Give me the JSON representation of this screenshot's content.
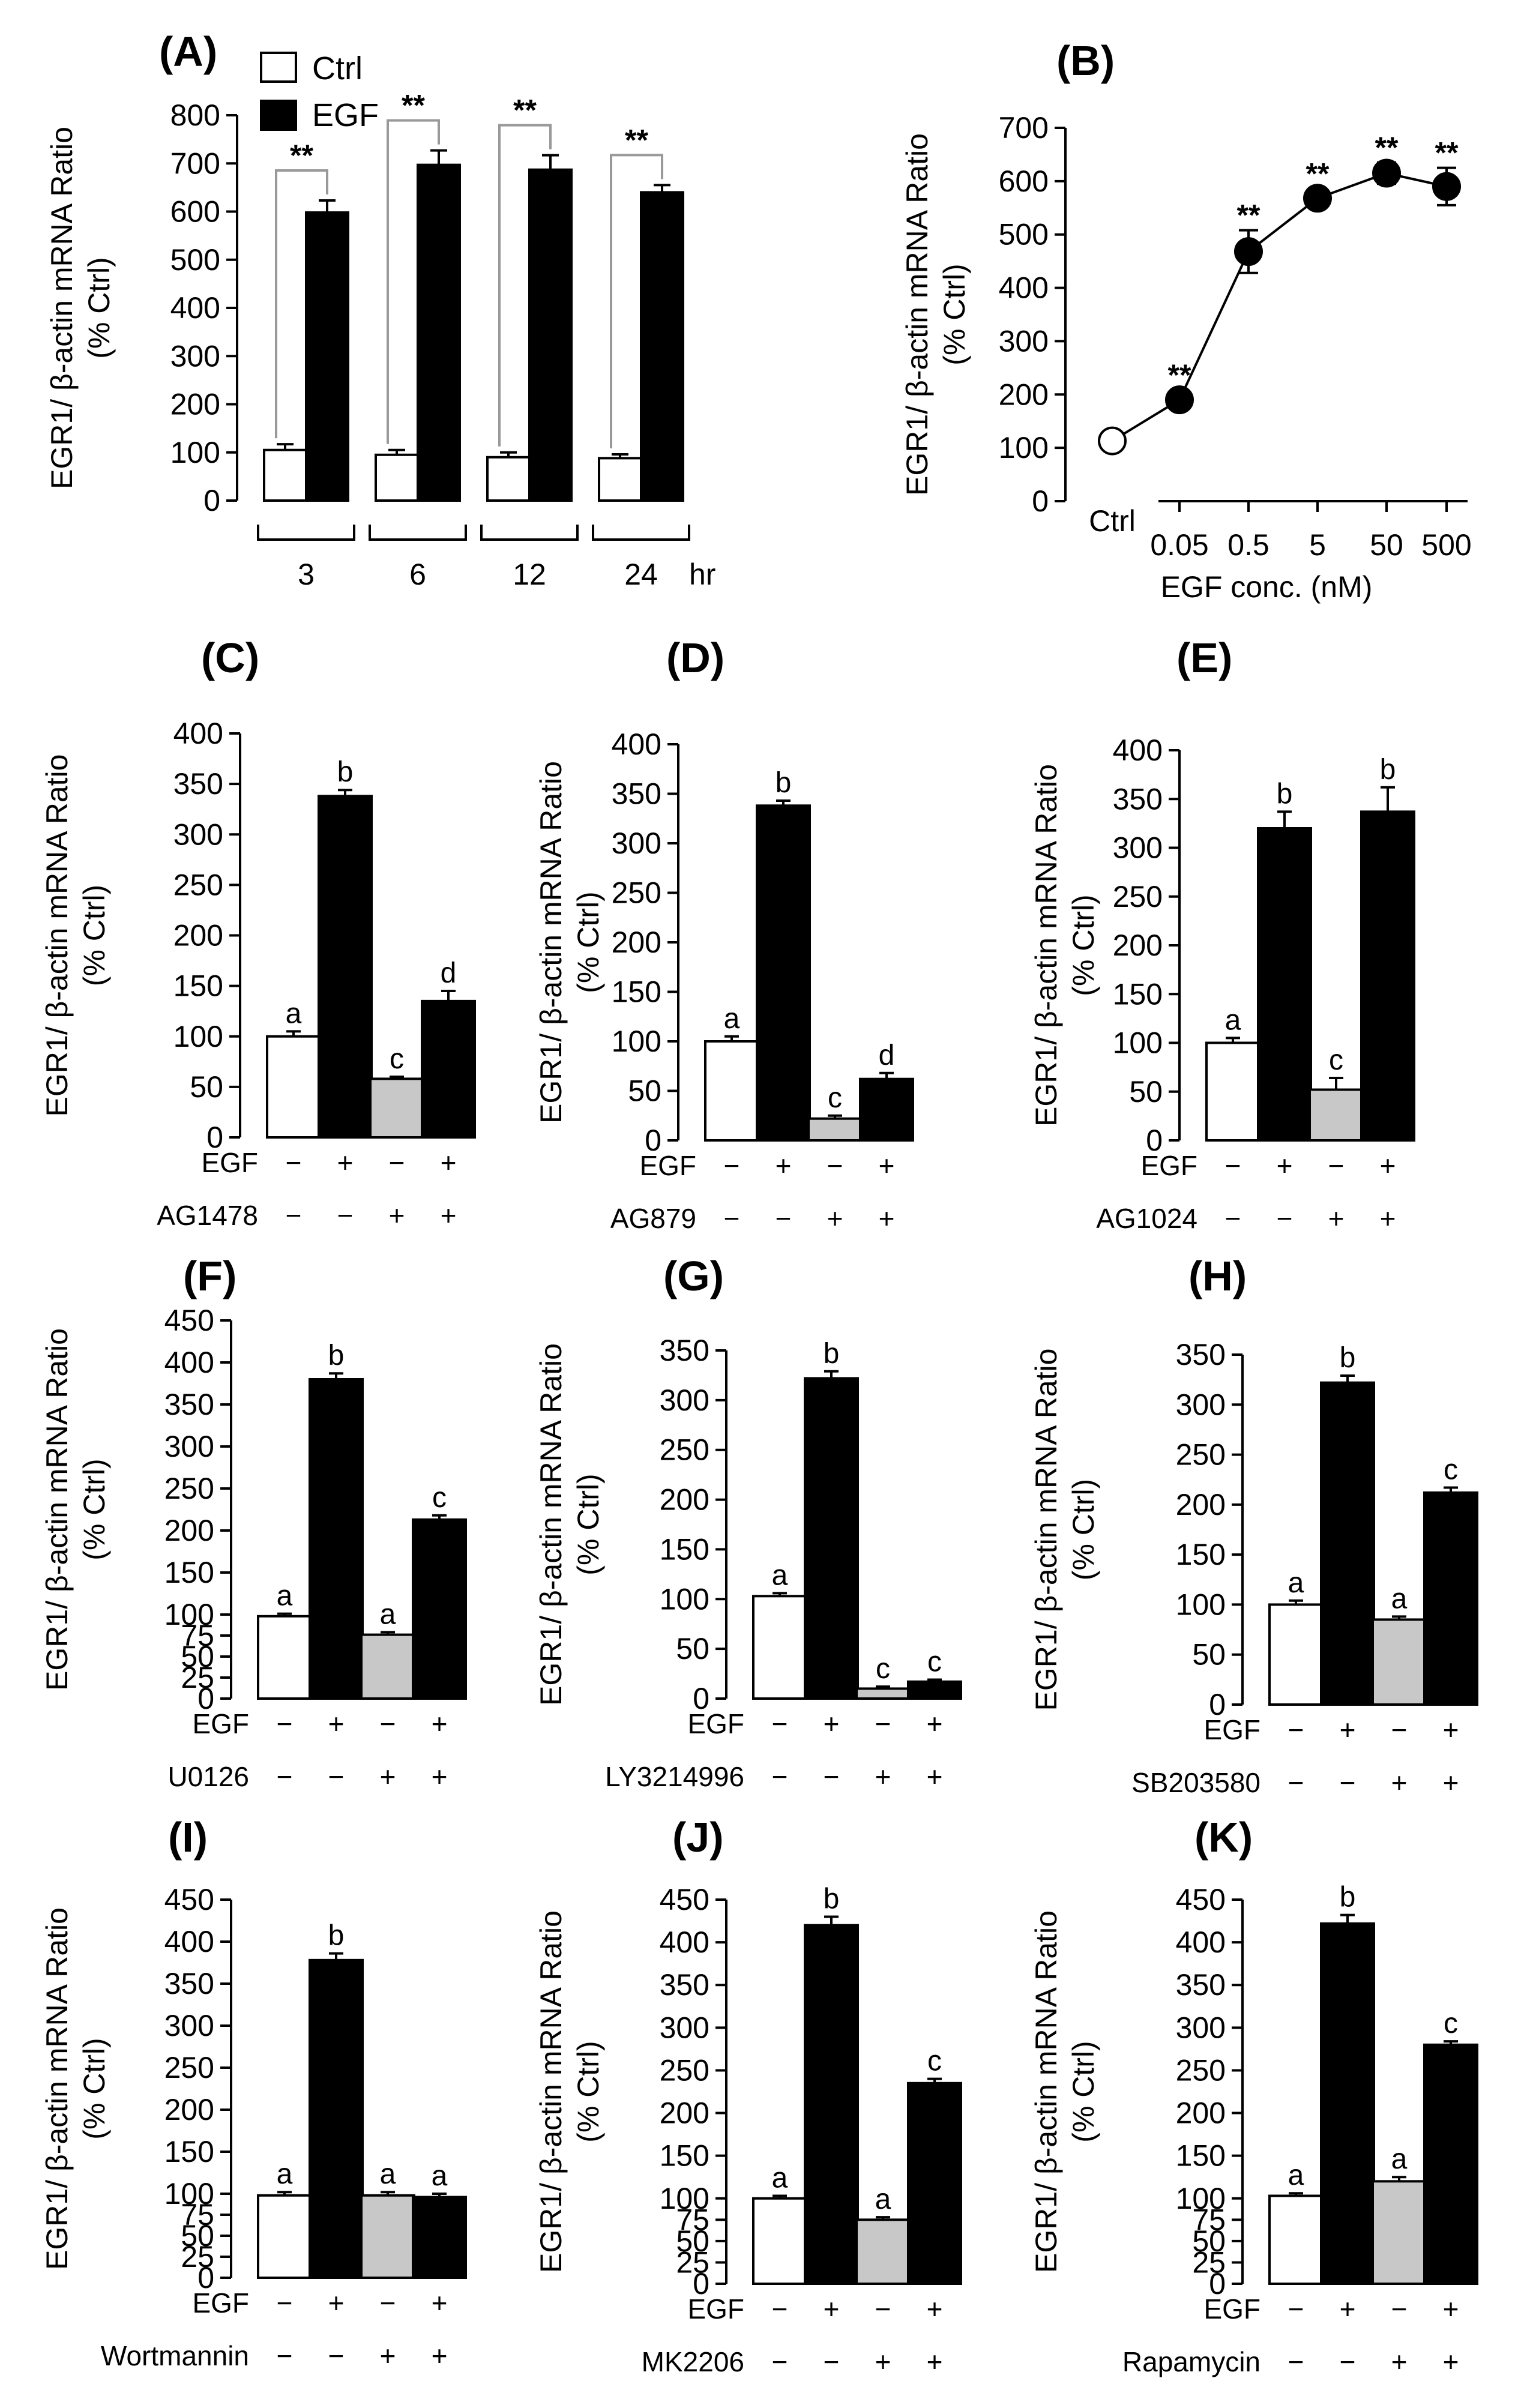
{
  "chart_data": [
    {
      "panel": "(A)",
      "type": "bar",
      "title": "(A)",
      "ylabel": "EGR1/ β-actin mRNA Ratio\n(% Ctrl)",
      "ylim": [
        0,
        800
      ],
      "yticks": [
        0,
        100,
        200,
        300,
        400,
        500,
        600,
        700,
        800
      ],
      "categories": [
        "3",
        "6",
        "12",
        "24"
      ],
      "xunit": "hr",
      "legend": [
        "Ctrl",
        "EGF"
      ],
      "series": [
        {
          "name": "Ctrl",
          "values": [
            105,
            95,
            90,
            88
          ],
          "errors": [
            12,
            10,
            10,
            8
          ],
          "color": "#ffffff"
        },
        {
          "name": "EGF",
          "values": [
            598,
            697,
            687,
            640
          ],
          "errors": [
            25,
            30,
            30,
            15
          ],
          "color": "#000000"
        }
      ],
      "significance": [
        "**",
        "**",
        "**",
        "**"
      ]
    },
    {
      "panel": "(B)",
      "type": "line",
      "title": "(B)",
      "ylabel": "EGR1/ β-actin mRNA Ratio\n(% Ctrl)",
      "xlabel": "EGF conc. (nM)",
      "ylim": [
        0,
        700
      ],
      "yticks": [
        0,
        100,
        200,
        300,
        400,
        500,
        600,
        700
      ],
      "x": [
        "Ctrl",
        "0.05",
        "0.5",
        "5",
        "50",
        "500"
      ],
      "values": [
        113,
        190,
        468,
        568,
        615,
        590
      ],
      "errors": [
        18,
        18,
        40,
        18,
        20,
        35
      ],
      "labels": [
        "",
        "**",
        "**",
        "**",
        "**",
        "**"
      ]
    },
    {
      "panel": "(C)",
      "type": "bar",
      "title": "(C)",
      "ylabel": "EGR1/ β-actin mRNA Ratio\n(% Ctrl)",
      "ylim": [
        0,
        400
      ],
      "yticks": [
        0,
        50,
        100,
        150,
        200,
        250,
        300,
        350,
        400
      ],
      "values": [
        100,
        338,
        58,
        135
      ],
      "errors": [
        5,
        6,
        2,
        10
      ],
      "colors": [
        "#ffffff",
        "#000000",
        "#c8c8c8",
        "#000000"
      ],
      "letters": [
        "a",
        "b",
        "c",
        "d"
      ],
      "treatments": [
        {
          "name": "EGF",
          "signs": [
            "−",
            "+",
            "−",
            "+"
          ]
        },
        {
          "name": "AG1478",
          "signs": [
            "−",
            "−",
            "+",
            "+"
          ]
        }
      ]
    },
    {
      "panel": "(D)",
      "type": "bar",
      "title": "(D)",
      "ylabel": "EGR1/ β-actin mRNA Ratio\n(% Ctrl)",
      "ylim": [
        0,
        400
      ],
      "yticks": [
        0,
        50,
        100,
        150,
        200,
        250,
        300,
        350,
        400
      ],
      "values": [
        100,
        338,
        22,
        62
      ],
      "errors": [
        5,
        5,
        3,
        6
      ],
      "colors": [
        "#ffffff",
        "#000000",
        "#c8c8c8",
        "#000000"
      ],
      "letters": [
        "a",
        "b",
        "c",
        "d"
      ],
      "treatments": [
        {
          "name": "EGF",
          "signs": [
            "−",
            "+",
            "−",
            "+"
          ]
        },
        {
          "name": "AG879",
          "signs": [
            "−",
            "−",
            "+",
            "+"
          ]
        }
      ]
    },
    {
      "panel": "(E)",
      "type": "bar",
      "title": "(E)",
      "ylabel": "EGR1/ β-actin mRNA Ratio\n(% Ctrl)",
      "ylim": [
        0,
        400
      ],
      "yticks": [
        0,
        50,
        100,
        150,
        200,
        250,
        300,
        350,
        400
      ],
      "values": [
        100,
        320,
        52,
        337
      ],
      "errors": [
        5,
        17,
        12,
        25
      ],
      "colors": [
        "#ffffff",
        "#000000",
        "#c8c8c8",
        "#000000"
      ],
      "letters": [
        "a",
        "b",
        "c",
        "b"
      ],
      "treatments": [
        {
          "name": "EGF",
          "signs": [
            "−",
            "+",
            "−",
            "+"
          ]
        },
        {
          "name": "AG1024",
          "signs": [
            "−",
            "−",
            "+",
            "+"
          ]
        }
      ]
    },
    {
      "panel": "(F)",
      "type": "bar",
      "title": "(F)",
      "ylabel": "EGR1/ β-actin mRNA Ratio\n(% Ctrl)",
      "ylim": [
        0,
        450
      ],
      "yticks": [
        0,
        25,
        50,
        75,
        100,
        150,
        200,
        250,
        300,
        350,
        400,
        450
      ],
      "values": [
        98,
        380,
        76,
        213
      ],
      "errors": [
        3,
        7,
        3,
        5
      ],
      "colors": [
        "#ffffff",
        "#000000",
        "#c8c8c8",
        "#000000"
      ],
      "letters": [
        "a",
        "b",
        "a",
        "c"
      ],
      "treatments": [
        {
          "name": "EGF",
          "signs": [
            "−",
            "+",
            "−",
            "+"
          ]
        },
        {
          "name": "U0126",
          "signs": [
            "−",
            "−",
            "+",
            "+"
          ]
        }
      ]
    },
    {
      "panel": "(G)",
      "type": "bar",
      "title": "(G)",
      "ylabel": "EGR1/ β-actin mRNA Ratio\n(% Ctrl)",
      "ylim": [
        0,
        350
      ],
      "yticks": [
        0,
        50,
        100,
        150,
        200,
        250,
        300,
        350
      ],
      "values": [
        103,
        322,
        10,
        17
      ],
      "errors": [
        3,
        7,
        2,
        2
      ],
      "colors": [
        "#ffffff",
        "#000000",
        "#c8c8c8",
        "#000000"
      ],
      "letters": [
        "a",
        "b",
        "c",
        "c"
      ],
      "treatments": [
        {
          "name": "EGF",
          "signs": [
            "−",
            "+",
            "−",
            "+"
          ]
        },
        {
          "name": "LY3214996",
          "signs": [
            "−",
            "−",
            "+",
            "+"
          ]
        }
      ]
    },
    {
      "panel": "(H)",
      "type": "bar",
      "title": "(H)",
      "ylabel": "EGR1/ β-actin mRNA Ratio\n(% Ctrl)",
      "ylim": [
        0,
        350
      ],
      "yticks": [
        0,
        50,
        100,
        150,
        200,
        250,
        300,
        350
      ],
      "values": [
        100,
        322,
        85,
        212
      ],
      "errors": [
        4,
        7,
        3,
        5
      ],
      "colors": [
        "#ffffff",
        "#000000",
        "#c8c8c8",
        "#000000"
      ],
      "letters": [
        "a",
        "b",
        "a",
        "c"
      ],
      "treatments": [
        {
          "name": "EGF",
          "signs": [
            "−",
            "+",
            "−",
            "+"
          ]
        },
        {
          "name": "SB203580",
          "signs": [
            "−",
            "−",
            "+",
            "+"
          ]
        }
      ]
    },
    {
      "panel": "(I)",
      "type": "bar",
      "title": "(I)",
      "ylabel": "EGR1/ β-actin mRNA Ratio\n(% Ctrl)",
      "ylim": [
        0,
        450
      ],
      "yticks": [
        0,
        25,
        50,
        75,
        100,
        150,
        200,
        250,
        300,
        350,
        400,
        450
      ],
      "values": [
        98,
        378,
        98,
        96
      ],
      "errors": [
        4,
        8,
        4,
        4
      ],
      "colors": [
        "#ffffff",
        "#000000",
        "#c8c8c8",
        "#000000"
      ],
      "letters": [
        "a",
        "b",
        "a",
        "a"
      ],
      "treatments": [
        {
          "name": "EGF",
          "signs": [
            "−",
            "+",
            "−",
            "+"
          ]
        },
        {
          "name": "Wortmannin",
          "signs": [
            "−",
            "−",
            "+",
            "+"
          ]
        }
      ]
    },
    {
      "panel": "(J)",
      "type": "bar",
      "title": "(J)",
      "ylabel": "EGR1/ β-actin mRNA Ratio\n(% Ctrl)",
      "ylim": [
        0,
        450
      ],
      "yticks": [
        0,
        25,
        50,
        75,
        100,
        150,
        200,
        250,
        300,
        350,
        400,
        450
      ],
      "values": [
        100,
        420,
        75,
        235
      ],
      "errors": [
        3,
        10,
        3,
        5
      ],
      "colors": [
        "#ffffff",
        "#000000",
        "#c8c8c8",
        "#000000"
      ],
      "letters": [
        "a",
        "b",
        "a",
        "c"
      ],
      "treatments": [
        {
          "name": "EGF",
          "signs": [
            "−",
            "+",
            "−",
            "+"
          ]
        },
        {
          "name": "MK2206",
          "signs": [
            "−",
            "−",
            "+",
            "+"
          ]
        }
      ]
    },
    {
      "panel": "(K)",
      "type": "bar",
      "title": "(K)",
      "ylabel": "EGR1/ β-actin mRNA Ratio\n(% Ctrl)",
      "ylim": [
        0,
        450
      ],
      "yticks": [
        0,
        25,
        50,
        75,
        100,
        150,
        200,
        250,
        300,
        350,
        400,
        450
      ],
      "values": [
        103,
        422,
        120,
        280
      ],
      "errors": [
        3,
        10,
        5,
        4
      ],
      "colors": [
        "#ffffff",
        "#000000",
        "#c8c8c8",
        "#000000"
      ],
      "letters": [
        "a",
        "b",
        "a",
        "c"
      ],
      "treatments": [
        {
          "name": "EGF",
          "signs": [
            "−",
            "+",
            "−",
            "+"
          ]
        },
        {
          "name": "Rapamycin",
          "signs": [
            "−",
            "−",
            "+",
            "+"
          ]
        }
      ]
    }
  ]
}
